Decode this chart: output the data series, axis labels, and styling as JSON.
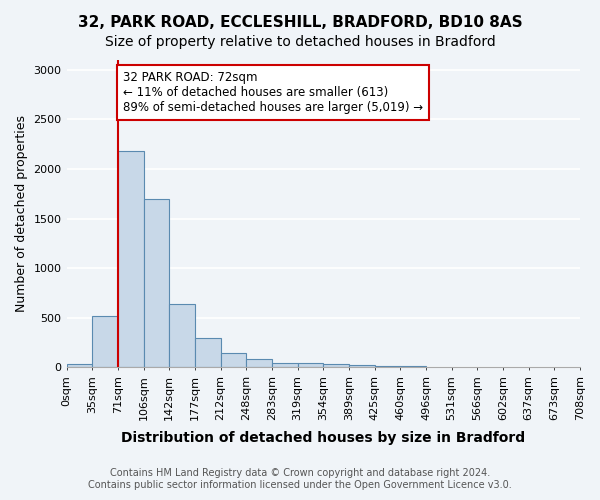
{
  "title1": "32, PARK ROAD, ECCLESHILL, BRADFORD, BD10 8AS",
  "title2": "Size of property relative to detached houses in Bradford",
  "xlabel": "Distribution of detached houses by size in Bradford",
  "ylabel": "Number of detached properties",
  "footnote": "Contains HM Land Registry data © Crown copyright and database right 2024.\nContains public sector information licensed under the Open Government Licence v3.0.",
  "bin_labels": [
    "0sqm",
    "35sqm",
    "71sqm",
    "106sqm",
    "142sqm",
    "177sqm",
    "212sqm",
    "248sqm",
    "283sqm",
    "319sqm",
    "354sqm",
    "389sqm",
    "425sqm",
    "460sqm",
    "496sqm",
    "531sqm",
    "566sqm",
    "602sqm",
    "637sqm",
    "673sqm",
    "708sqm"
  ],
  "bar_values": [
    35,
    520,
    2180,
    1700,
    640,
    290,
    145,
    80,
    45,
    40,
    30,
    20,
    15,
    10,
    5,
    4,
    3,
    2,
    1,
    1
  ],
  "bar_color": "#c8d8e8",
  "bar_edge_color": "#5a8ab0",
  "property_line_x": 2,
  "property_line_color": "#cc0000",
  "annotation_text": "32 PARK ROAD: 72sqm\n← 11% of detached houses are smaller (613)\n89% of semi-detached houses are larger (5,019) →",
  "annotation_box_color": "#cc0000",
  "ylim": [
    0,
    3100
  ],
  "yticks": [
    0,
    500,
    1000,
    1500,
    2000,
    2500,
    3000
  ],
  "background_color": "#f0f4f8",
  "grid_color": "#ffffff",
  "title1_fontsize": 11,
  "title2_fontsize": 10,
  "xlabel_fontsize": 10,
  "ylabel_fontsize": 9,
  "tick_fontsize": 8,
  "annotation_fontsize": 8.5,
  "footnote_fontsize": 7
}
